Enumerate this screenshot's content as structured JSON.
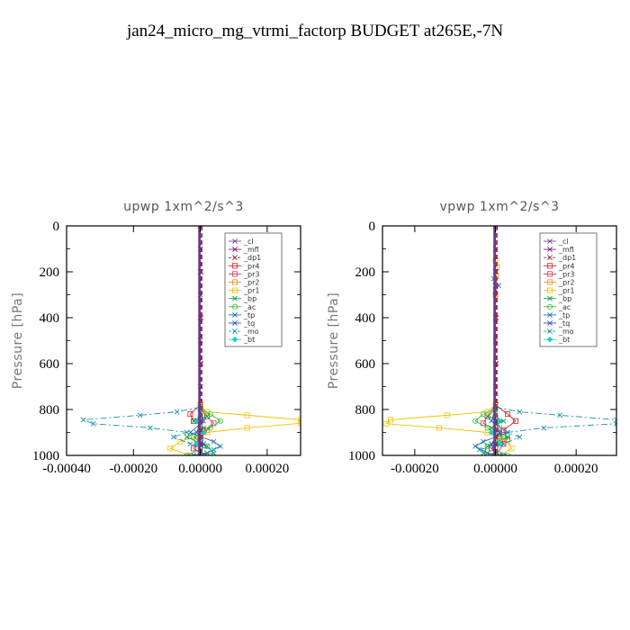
{
  "title": "jan24_micro_mg_vtrmi_factorp  BUDGET at265E,-7N",
  "chart_data": [
    {
      "type": "line",
      "title": "upwp   1xm^2/s^3",
      "ylabel": "Pressure [hPa]",
      "xlim": [
        -0.0004,
        0.0003
      ],
      "ylim": [
        1000,
        0
      ],
      "xticks": [
        "-0.00040",
        "-0.00020",
        "0.00000",
        "0.00020"
      ],
      "xtick_values": [
        -0.0004,
        -0.0002,
        0,
        0.0002
      ],
      "yticks": [
        "0",
        "200",
        "400",
        "600",
        "800",
        "1000"
      ],
      "ytick_values": [
        0,
        200,
        400,
        600,
        800,
        1000
      ],
      "legend_position": "upper-right",
      "series": [
        {
          "name": "_cl",
          "color": "#7a4a9a",
          "dash": "",
          "marker": "x",
          "points": [
            [
              0,
              0
            ],
            [
              0,
              100
            ],
            [
              0,
              300
            ],
            [
              0,
              500
            ],
            [
              0,
              700
            ],
            [
              0,
              800
            ],
            [
              0,
              850
            ],
            [
              0,
              900
            ],
            [
              0,
              950
            ],
            [
              0,
              1000
            ]
          ]
        },
        {
          "name": "_mfl",
          "color": "#8a1a8a",
          "dash": "",
          "marker": "x",
          "points": [
            [
              0,
              0
            ],
            [
              0,
              200
            ],
            [
              0,
              400
            ],
            [
              0,
              600
            ],
            [
              0,
              800
            ],
            [
              0,
              1000
            ]
          ]
        },
        {
          "name": "_dp1",
          "color": "#9a2040",
          "dash": "5,3",
          "marker": "x",
          "points": [
            [
              0,
              0
            ],
            [
              2e-06,
              200
            ],
            [
              2e-06,
              400
            ],
            [
              2e-06,
              600
            ],
            [
              2e-06,
              780
            ],
            [
              4e-06,
              850
            ],
            [
              2e-06,
              920
            ],
            [
              0,
              1000
            ]
          ]
        },
        {
          "name": "_pr4",
          "color": "#d02020",
          "dash": "",
          "marker": "s",
          "points": [
            [
              0,
              780
            ],
            [
              -3e-05,
              820
            ],
            [
              -2e-05,
              850
            ],
            [
              2e-05,
              890
            ],
            [
              0,
              930
            ],
            [
              -2e-05,
              970
            ],
            [
              1e-05,
              1000
            ]
          ]
        },
        {
          "name": "_pr3",
          "color": "#e03060",
          "dash": "",
          "marker": "s",
          "points": [
            [
              0,
              780
            ],
            [
              2e-05,
              830
            ],
            [
              4e-05,
              860
            ],
            [
              1e-05,
              900
            ],
            [
              -1e-05,
              950
            ],
            [
              0,
              1000
            ]
          ]
        },
        {
          "name": "_pr2",
          "color": "#f09020",
          "dash": "",
          "marker": "s",
          "points": [
            [
              0,
              780
            ],
            [
              0,
              830
            ],
            [
              0,
              880
            ],
            [
              -1e-05,
              930
            ],
            [
              0,
              1000
            ]
          ]
        },
        {
          "name": "_pr1",
          "color": "#f0c000",
          "dash": "",
          "marker": "s",
          "points": [
            [
              0,
              780
            ],
            [
              2e-05,
              810
            ],
            [
              0.00014,
              825
            ],
            [
              0.0003,
              845
            ],
            [
              0.0003,
              860
            ],
            [
              0.00014,
              880
            ],
            [
              2e-05,
              900
            ],
            [
              -6e-05,
              940
            ],
            [
              -9e-05,
              970
            ],
            [
              -3e-05,
              1000
            ]
          ]
        },
        {
          "name": "_bp",
          "color": "#10a040",
          "dash": "",
          "marker": "x",
          "points": [
            [
              0,
              800
            ],
            [
              2e-05,
              830
            ],
            [
              -2e-05,
              850
            ],
            [
              1e-05,
              880
            ],
            [
              -4e-05,
              920
            ],
            [
              2e-05,
              960
            ],
            [
              4e-05,
              990
            ],
            [
              -2e-05,
              1000
            ]
          ]
        },
        {
          "name": "_ac",
          "color": "#30c030",
          "dash": "",
          "marker": "o",
          "points": [
            [
              0,
              800
            ],
            [
              3e-05,
              820
            ],
            [
              6e-05,
              850
            ],
            [
              3e-05,
              880
            ],
            [
              -2e-05,
              920
            ],
            [
              2e-05,
              960
            ],
            [
              -4e-05,
              1000
            ]
          ]
        },
        {
          "name": "_tp",
          "color": "#2070c0",
          "dash": "",
          "marker": "x",
          "points": [
            [
              0,
              800
            ],
            [
              1e-05,
              850
            ],
            [
              -3e-05,
              900
            ],
            [
              4e-05,
              940
            ],
            [
              6e-05,
              960
            ],
            [
              2e-05,
              990
            ],
            [
              -2e-05,
              1000
            ]
          ]
        },
        {
          "name": "_tq",
          "color": "#3050d0",
          "dash": "",
          "marker": "x",
          "points": [
            [
              0,
              800
            ],
            [
              0,
              850
            ],
            [
              -1e-05,
              900
            ],
            [
              1e-05,
              950
            ],
            [
              0,
              1000
            ]
          ]
        },
        {
          "name": "_mo",
          "color": "#1890b0",
          "dash": "7,3,2,3",
          "marker": "x",
          "points": [
            [
              0,
              790
            ],
            [
              -7e-05,
              810
            ],
            [
              -0.00018,
              825
            ],
            [
              -0.00035,
              845
            ],
            [
              -0.00032,
              862
            ],
            [
              -0.00015,
              880
            ],
            [
              -4e-05,
              900
            ],
            [
              -8e-05,
              920
            ],
            [
              -3e-05,
              950
            ],
            [
              4e-05,
              975
            ],
            [
              0,
              1000
            ]
          ]
        },
        {
          "name": "_bt",
          "color": "#10d0d0",
          "dash": "",
          "marker": "d",
          "points": [
            [
              0,
              800
            ],
            [
              -1e-05,
              850
            ],
            [
              1e-05,
              900
            ],
            [
              -1e-05,
              950
            ],
            [
              0,
              1000
            ]
          ]
        }
      ]
    },
    {
      "type": "line",
      "title": "vpwp   1xm^2/s^3",
      "ylabel": "Pressure [hPa]",
      "xlim": [
        -0.00028,
        0.0003
      ],
      "ylim": [
        1000,
        0
      ],
      "xticks": [
        "-0.00020",
        "0.00000",
        "0.00020"
      ],
      "xtick_values": [
        -0.0002,
        0,
        0.0002
      ],
      "yticks": [
        "0",
        "200",
        "400",
        "600",
        "800",
        "1000"
      ],
      "ytick_values": [
        0,
        200,
        400,
        600,
        800,
        1000
      ],
      "legend_position": "upper-right",
      "series": [
        {
          "name": "_cl",
          "color": "#7a4a9a",
          "dash": "",
          "marker": "x",
          "points": [
            [
              0,
              0
            ],
            [
              0,
              100
            ],
            [
              0,
              300
            ],
            [
              0,
              500
            ],
            [
              0,
              700
            ],
            [
              0,
              800
            ],
            [
              0,
              850
            ],
            [
              0,
              900
            ],
            [
              0,
              950
            ],
            [
              0,
              1000
            ]
          ]
        },
        {
          "name": "_mfl",
          "color": "#8a1a8a",
          "dash": "",
          "marker": "x",
          "points": [
            [
              0,
              0
            ],
            [
              0,
              200
            ],
            [
              0,
              400
            ],
            [
              0,
              600
            ],
            [
              0,
              800
            ],
            [
              0,
              1000
            ]
          ]
        },
        {
          "name": "_dp1",
          "color": "#9a2040",
          "dash": "5,3",
          "marker": "x",
          "points": [
            [
              0,
              0
            ],
            [
              2e-06,
              200
            ],
            [
              2e-06,
              400
            ],
            [
              2e-06,
              600
            ],
            [
              2e-06,
              780
            ],
            [
              4e-06,
              850
            ],
            [
              2e-06,
              920
            ],
            [
              0,
              1000
            ]
          ]
        },
        {
          "name": "_pr4",
          "color": "#d02020",
          "dash": "",
          "marker": "s",
          "points": [
            [
              0,
              780
            ],
            [
              3e-05,
              820
            ],
            [
              5e-05,
              850
            ],
            [
              2e-05,
              890
            ],
            [
              3e-05,
              930
            ],
            [
              -1e-05,
              970
            ],
            [
              1e-05,
              1000
            ]
          ]
        },
        {
          "name": "_pr3",
          "color": "#e03060",
          "dash": "",
          "marker": "s",
          "points": [
            [
              0,
              780
            ],
            [
              -2e-05,
              830
            ],
            [
              -3e-05,
              860
            ],
            [
              1e-05,
              900
            ],
            [
              2e-05,
              950
            ],
            [
              0,
              1000
            ]
          ]
        },
        {
          "name": "_pr2",
          "color": "#f09020",
          "dash": "",
          "marker": "s",
          "points": [
            [
              0,
              150
            ],
            [
              4e-06,
              180
            ],
            [
              2e-06,
              220
            ],
            [
              0,
              300
            ],
            [
              0,
              780
            ],
            [
              0,
              830
            ],
            [
              1e-05,
              880
            ],
            [
              1e-05,
              930
            ],
            [
              0,
              1000
            ]
          ]
        },
        {
          "name": "_pr1",
          "color": "#f0c000",
          "dash": "",
          "marker": "s",
          "points": [
            [
              0,
              780
            ],
            [
              -2e-05,
              810
            ],
            [
              -0.00012,
              825
            ],
            [
              -0.00026,
              845
            ],
            [
              -0.00027,
              862
            ],
            [
              -0.00014,
              880
            ],
            [
              -2e-05,
              900
            ],
            [
              3e-05,
              940
            ],
            [
              4e-05,
              970
            ],
            [
              1e-05,
              1000
            ]
          ]
        },
        {
          "name": "_bp",
          "color": "#10a040",
          "dash": "",
          "marker": "x",
          "points": [
            [
              0,
              800
            ],
            [
              -2e-05,
              830
            ],
            [
              2e-05,
              850
            ],
            [
              -1e-05,
              880
            ],
            [
              3e-05,
              920
            ],
            [
              -2e-05,
              960
            ],
            [
              -3e-05,
              990
            ],
            [
              1e-05,
              1000
            ]
          ]
        },
        {
          "name": "_ac",
          "color": "#30c030",
          "dash": "",
          "marker": "o",
          "points": [
            [
              0,
              800
            ],
            [
              -3e-05,
              820
            ],
            [
              -5e-05,
              850
            ],
            [
              -2e-05,
              880
            ],
            [
              2e-05,
              920
            ],
            [
              -2e-05,
              960
            ],
            [
              3e-05,
              1000
            ]
          ]
        },
        {
          "name": "_tp",
          "color": "#2070c0",
          "dash": "",
          "marker": "x",
          "points": [
            [
              0,
              200
            ],
            [
              -4e-06,
              230
            ],
            [
              0,
              260
            ],
            [
              0,
              800
            ],
            [
              -1e-05,
              850
            ],
            [
              3e-05,
              900
            ],
            [
              -3e-05,
              940
            ],
            [
              -5e-05,
              960
            ],
            [
              -2e-05,
              990
            ],
            [
              2e-05,
              1000
            ]
          ]
        },
        {
          "name": "_tq",
          "color": "#3050d0",
          "dash": "",
          "marker": "x",
          "points": [
            [
              0,
              240
            ],
            [
              8e-06,
              260
            ],
            [
              0,
              280
            ],
            [
              0,
              800
            ],
            [
              0,
              850
            ],
            [
              1e-05,
              900
            ],
            [
              -1e-05,
              950
            ],
            [
              0,
              1000
            ]
          ]
        },
        {
          "name": "_mo",
          "color": "#1890b0",
          "dash": "7,3,2,3",
          "marker": "x",
          "points": [
            [
              0,
              790
            ],
            [
              6e-05,
              810
            ],
            [
              0.00016,
              825
            ],
            [
              0.0003,
              845
            ],
            [
              0.0003,
              862
            ],
            [
              0.00012,
              880
            ],
            [
              3e-05,
              900
            ],
            [
              6e-05,
              920
            ],
            [
              2e-05,
              950
            ],
            [
              -4e-05,
              975
            ],
            [
              0,
              1000
            ]
          ]
        },
        {
          "name": "_bt",
          "color": "#10d0d0",
          "dash": "",
          "marker": "d",
          "points": [
            [
              0,
              800
            ],
            [
              1e-05,
              850
            ],
            [
              -1e-05,
              900
            ],
            [
              1e-05,
              950
            ],
            [
              0,
              1000
            ]
          ]
        }
      ]
    }
  ]
}
